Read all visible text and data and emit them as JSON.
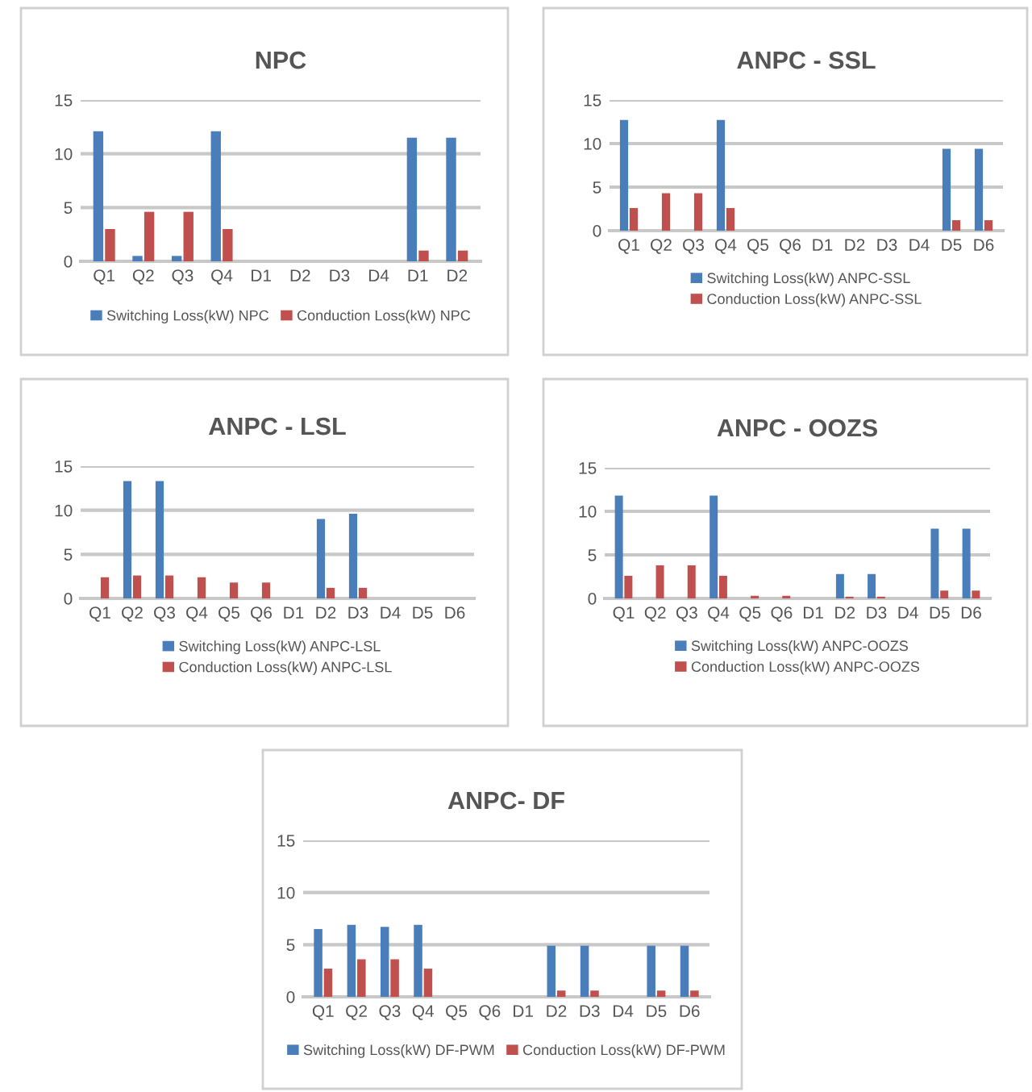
{
  "chart_data": [
    {
      "type": "bar",
      "title": "NPC",
      "categories": [
        "Q1",
        "Q2",
        "Q3",
        "Q4",
        "D1",
        "D2",
        "D3",
        "D4",
        "D1",
        "D2"
      ],
      "ylim": [
        0,
        15
      ],
      "yticks": [
        0,
        5,
        10,
        15
      ],
      "grid": "y",
      "legend": "bottom",
      "series": [
        {
          "name": "Switching Loss(kW) NPC",
          "color": "#4a7ebb",
          "values": [
            12.1,
            0.5,
            0.5,
            12.1,
            null,
            null,
            null,
            null,
            11.5,
            11.5
          ]
        },
        {
          "name": "Conduction Loss(kW) NPC",
          "color": "#c0504d",
          "values": [
            3.0,
            4.6,
            4.6,
            3.0,
            null,
            null,
            null,
            null,
            1.0,
            1.0
          ]
        }
      ]
    },
    {
      "type": "bar",
      "title": "ANPC - SSL",
      "categories": [
        "Q1",
        "Q2",
        "Q3",
        "Q4",
        "Q5",
        "Q6",
        "D1",
        "D2",
        "D3",
        "D4",
        "D5",
        "D6"
      ],
      "ylim": [
        0,
        15
      ],
      "yticks": [
        0,
        5,
        10,
        15
      ],
      "grid": "y",
      "legend": "bottom",
      "series": [
        {
          "name": "Switching Loss(kW) ANPC-SSL",
          "color": "#4a7ebb",
          "values": [
            12.7,
            null,
            null,
            12.7,
            null,
            null,
            null,
            null,
            null,
            null,
            9.4,
            9.4
          ]
        },
        {
          "name": "Conduction Loss(kW) ANPC-SSL",
          "color": "#c0504d",
          "values": [
            2.6,
            4.3,
            4.3,
            2.6,
            null,
            null,
            null,
            null,
            null,
            null,
            1.2,
            1.2
          ]
        }
      ]
    },
    {
      "type": "bar",
      "title": "ANPC - LSL",
      "categories": [
        "Q1",
        "Q2",
        "Q3",
        "Q4",
        "Q5",
        "Q6",
        "D1",
        "D2",
        "D3",
        "D4",
        "D5",
        "D6"
      ],
      "ylim": [
        0,
        15
      ],
      "yticks": [
        0,
        5,
        10,
        15
      ],
      "grid": "y",
      "legend": "bottom",
      "series": [
        {
          "name": "Switching Loss(kW) ANPC-LSL",
          "color": "#4a7ebb",
          "values": [
            null,
            13.3,
            13.3,
            null,
            null,
            null,
            null,
            9.0,
            9.6,
            null,
            null,
            null
          ]
        },
        {
          "name": "Conduction Loss(kW) ANPC-LSL",
          "color": "#c0504d",
          "values": [
            2.4,
            2.6,
            2.6,
            2.4,
            1.8,
            1.8,
            null,
            1.2,
            1.2,
            null,
            null,
            null
          ]
        }
      ]
    },
    {
      "type": "bar",
      "title": "ANPC - OOZS",
      "categories": [
        "Q1",
        "Q2",
        "Q3",
        "Q4",
        "Q5",
        "Q6",
        "D1",
        "D2",
        "D3",
        "D4",
        "D5",
        "D6"
      ],
      "ylim": [
        0,
        15
      ],
      "yticks": [
        0,
        5,
        10,
        15
      ],
      "grid": "y",
      "legend": "bottom",
      "series": [
        {
          "name": "Switching Loss(kW) ANPC-OOZS",
          "color": "#4a7ebb",
          "values": [
            11.8,
            null,
            null,
            11.8,
            null,
            null,
            null,
            2.8,
            2.8,
            null,
            8.0,
            8.0
          ]
        },
        {
          "name": "Conduction Loss(kW) ANPC-OOZS",
          "color": "#c0504d",
          "values": [
            2.6,
            3.8,
            3.8,
            2.6,
            0.3,
            0.3,
            null,
            0.2,
            0.2,
            null,
            0.9,
            0.9
          ]
        }
      ]
    },
    {
      "type": "bar",
      "title": "ANPC- DF",
      "categories": [
        "Q1",
        "Q2",
        "Q3",
        "Q4",
        "Q5",
        "Q6",
        "D1",
        "D2",
        "D3",
        "D4",
        "D5",
        "D6"
      ],
      "ylim": [
        0,
        15
      ],
      "yticks": [
        0,
        5,
        10,
        15
      ],
      "grid": "y",
      "legend": "bottom",
      "series": [
        {
          "name": "Switching Loss(kW) DF-PWM",
          "color": "#4a7ebb",
          "values": [
            6.5,
            6.9,
            6.7,
            6.9,
            null,
            null,
            null,
            4.9,
            4.9,
            null,
            4.9,
            4.9
          ]
        },
        {
          "name": "Conduction Loss(kW) DF-PWM",
          "color": "#c0504d",
          "values": [
            2.7,
            3.6,
            3.6,
            2.7,
            null,
            null,
            null,
            0.6,
            0.6,
            null,
            0.6,
            0.6
          ]
        }
      ]
    }
  ]
}
